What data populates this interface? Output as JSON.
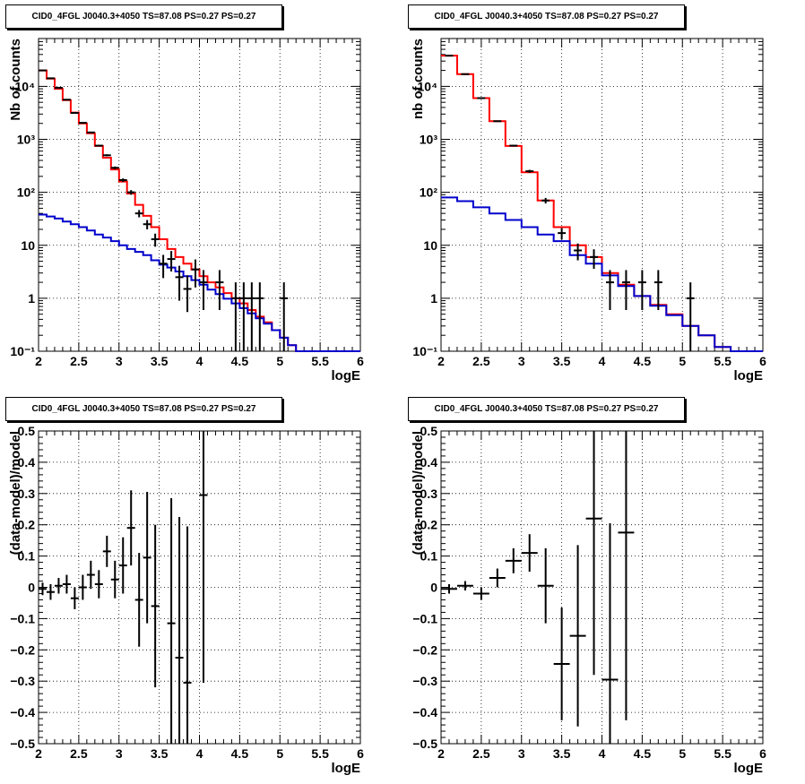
{
  "panels": [
    {
      "title": "CID0_4FGL J0040.3+4050 TS=87.08 PS=0.27 PS=0.27",
      "chart_data": {
        "type": "line",
        "xlabel": "logE",
        "ylabel": "Nb of counts",
        "xlim": [
          2,
          6
        ],
        "ylim": [
          0.1,
          80000
        ],
        "yscale": "log",
        "grid": true,
        "x_ticks": [
          "2",
          "2.5",
          "3",
          "3.5",
          "4",
          "4.5",
          "5",
          "5.5",
          "6"
        ],
        "y_ticks": [
          "10⁻¹",
          "1",
          "10",
          "10²",
          "10³",
          "10⁴"
        ],
        "series": [
          {
            "color": "#ff0000",
            "style": "step",
            "bin_width": 0.1,
            "x": [
              2.0,
              2.1,
              2.2,
              2.3,
              2.4,
              2.5,
              2.6,
              2.7,
              2.8,
              2.9,
              3.0,
              3.1,
              3.2,
              3.3,
              3.4,
              3.5,
              3.6,
              3.7,
              3.8,
              3.9,
              4.0,
              4.1,
              4.2,
              4.3,
              4.4,
              4.5,
              4.6,
              4.7,
              4.8,
              4.9,
              5.0,
              5.1,
              5.2,
              5.3,
              5.4,
              5.5,
              5.6,
              5.7,
              5.8,
              5.9
            ],
            "values": [
              20000,
              14000,
              9000,
              5500,
              3200,
              2000,
              1300,
              750,
              450,
              270,
              160,
              95,
              58,
              36,
              22,
              13,
              8.5,
              6.0,
              4.5,
              3.5,
              2.6,
              2.0,
              1.6,
              1.25,
              1.0,
              0.8,
              0.6,
              0.45,
              0.35,
              0.25,
              0.18,
              0.13,
              0.1,
              0.1,
              0.1,
              0.1,
              0.1,
              0.1,
              0.1,
              0.1
            ]
          },
          {
            "color": "#0000cc",
            "style": "step",
            "bin_width": 0.1,
            "x": [
              2.0,
              2.1,
              2.2,
              2.3,
              2.4,
              2.5,
              2.6,
              2.7,
              2.8,
              2.9,
              3.0,
              3.1,
              3.2,
              3.3,
              3.4,
              3.5,
              3.6,
              3.7,
              3.8,
              3.9,
              4.0,
              4.1,
              4.2,
              4.3,
              4.4,
              4.5,
              4.6,
              4.7,
              4.8,
              4.9,
              5.0,
              5.1,
              5.2,
              5.3,
              5.4,
              5.5,
              5.6,
              5.7,
              5.8,
              5.9
            ],
            "values": [
              38,
              35,
              32,
              28,
              25,
              22,
              19,
              16,
              14,
              12,
              10,
              8.5,
              7.5,
              6.5,
              5.2,
              4.3,
              3.8,
              3.2,
              2.6,
              2.2,
              1.8,
              1.45,
              1.2,
              0.98,
              0.8,
              0.65,
              0.52,
              0.42,
              0.33,
              0.25,
              0.18,
              0.13,
              0.1,
              0.1,
              0.1,
              0.1,
              0.1,
              0.1,
              0.1,
              0.1
            ]
          },
          {
            "color": "#000000",
            "style": "errorbar",
            "x": [
              2.05,
              2.15,
              2.25,
              2.35,
              2.45,
              2.55,
              2.65,
              2.75,
              2.85,
              2.95,
              3.05,
              3.15,
              3.25,
              3.35,
              3.45,
              3.55,
              3.65,
              3.75,
              3.85,
              3.95,
              4.05,
              4.25,
              4.45,
              4.55,
              4.65,
              4.75,
              5.05
            ],
            "values": [
              20000,
              14200,
              9400,
              5600,
              3150,
              2050,
              1350,
              760,
              500,
              290,
              170,
              100,
              40,
              25,
              13,
              4.5,
              5.5,
              2.5,
              1.5,
              3.5,
              2.0,
              2.0,
              1.0,
              1.0,
              1.0,
              1.0,
              1.0
            ],
            "err_low": [
              140,
              120,
              97,
              75,
              56,
              45,
              37,
              28,
              22,
              17,
              13,
              10,
              6.3,
              5,
              3.6,
              2.1,
              2.3,
              1.6,
              0.95,
              1.9,
              1.4,
              1.4,
              0.9,
              0.9,
              0.9,
              0.9,
              0.9
            ],
            "err_high": [
              140,
              120,
              97,
              75,
              56,
              45,
              37,
              28,
              22,
              17,
              13,
              10,
              6.3,
              5,
              3.6,
              2.1,
              2.3,
              1.6,
              1.2,
              1.9,
              1.4,
              1.4,
              1.0,
              1.0,
              1.0,
              1.0,
              1.0
            ]
          }
        ]
      }
    },
    {
      "title": "CID0_4FGL J0040.3+4050 TS=87.08 PS=0.27 PS=0.27",
      "chart_data": {
        "type": "line",
        "xlabel": "logE",
        "ylabel": "nb of counts",
        "xlim": [
          2,
          6
        ],
        "ylim": [
          0.1,
          80000
        ],
        "yscale": "log",
        "grid": true,
        "x_ticks": [
          "2",
          "2.5",
          "3",
          "3.5",
          "4",
          "4.5",
          "5",
          "5.5",
          "6"
        ],
        "y_ticks": [
          "10⁻¹",
          "1",
          "10",
          "10²",
          "10³",
          "10⁴"
        ],
        "series": [
          {
            "color": "#ff0000",
            "style": "step",
            "bin_width": 0.2,
            "x": [
              2.0,
              2.2,
              2.4,
              2.6,
              2.8,
              3.0,
              3.2,
              3.4,
              3.6,
              3.8,
              4.0,
              4.2,
              4.4,
              4.6,
              4.8,
              5.0,
              5.2,
              5.4,
              5.6,
              5.8
            ],
            "values": [
              38000,
              17000,
              6000,
              2200,
              750,
              240,
              70,
              22,
              10,
              6,
              3.0,
              1.8,
              1.1,
              0.75,
              0.5,
              0.3,
              0.2,
              0.12,
              0.1,
              0.1
            ]
          },
          {
            "color": "#0000cc",
            "style": "step",
            "bin_width": 0.2,
            "x": [
              2.0,
              2.2,
              2.4,
              2.6,
              2.8,
              3.0,
              3.2,
              3.4,
              3.6,
              3.8,
              4.0,
              4.2,
              4.4,
              4.6,
              4.8,
              5.0,
              5.2,
              5.4,
              5.6,
              5.8
            ],
            "values": [
              80,
              68,
              52,
              40,
              30,
              22,
              16,
              12,
              6.5,
              4.5,
              2.7,
              1.7,
              1.1,
              0.72,
              0.48,
              0.3,
              0.2,
              0.12,
              0.1,
              0.1
            ]
          },
          {
            "color": "#000000",
            "style": "errorbar",
            "x": [
              2.1,
              2.3,
              2.5,
              2.7,
              2.9,
              3.1,
              3.3,
              3.5,
              3.7,
              3.9,
              4.1,
              4.3,
              4.5,
              4.7,
              5.1
            ],
            "values": [
              38000,
              17000,
              6000,
              2200,
              760,
              250,
              70,
              17,
              8,
              6,
              2,
              2,
              2,
              2,
              1
            ],
            "err_low": [
              195,
              130,
              77,
              47,
              28,
              16,
              8.4,
              4.1,
              2.8,
              2.4,
              1.4,
              1.4,
              1.4,
              1.4,
              0.9
            ],
            "err_high": [
              195,
              130,
              77,
              47,
              28,
              16,
              8.4,
              4.1,
              2.8,
              2.4,
              1.4,
              1.4,
              1.4,
              1.4,
              1.0
            ]
          }
        ]
      }
    },
    {
      "title": "CID0_4FGL J0040.3+4050 TS=87.08 PS=0.27 PS=0.27",
      "chart_data": {
        "type": "scatter",
        "xlabel": "logE",
        "ylabel": "(data-model)/model",
        "xlim": [
          2,
          6
        ],
        "ylim": [
          -0.5,
          0.5
        ],
        "yscale": "linear",
        "grid": true,
        "x_ticks": [
          "2",
          "2.5",
          "3",
          "3.5",
          "4",
          "4.5",
          "5",
          "5.5",
          "6"
        ],
        "y_ticks": [
          "−0.5",
          "−0.4",
          "−0.3",
          "−0.2",
          "−0.1",
          "0",
          "0.1",
          "0.2",
          "0.3",
          "0.4",
          "0.5"
        ],
        "series": [
          {
            "color": "#000000",
            "style": "errorbar",
            "x_halfwidth": 0.05,
            "x": [
              2.05,
              2.15,
              2.25,
              2.35,
              2.45,
              2.55,
              2.65,
              2.75,
              2.85,
              2.95,
              3.05,
              3.15,
              3.25,
              3.35,
              3.45,
              3.65,
              3.75,
              3.85,
              4.05
            ],
            "values": [
              -0.005,
              -0.015,
              0.005,
              0.01,
              -0.035,
              0.0,
              0.04,
              0.01,
              0.115,
              0.025,
              0.07,
              0.19,
              -0.04,
              0.095,
              -0.06,
              -0.115,
              -0.225,
              -0.305,
              0.295
            ],
            "errors": [
              0.02,
              0.025,
              0.025,
              0.03,
              0.035,
              0.04,
              0.045,
              0.045,
              0.05,
              0.06,
              0.09,
              0.12,
              0.15,
              0.21,
              0.26,
              0.4,
              0.45,
              0.5,
              0.6
            ]
          }
        ]
      }
    },
    {
      "title": "CID0_4FGL J0040.3+4050 TS=87.08 PS=0.27 PS=0.27",
      "chart_data": {
        "type": "scatter",
        "xlabel": "logE",
        "ylabel": "(data-model)/model",
        "xlim": [
          2,
          6
        ],
        "ylim": [
          -0.5,
          0.5
        ],
        "yscale": "linear",
        "grid": true,
        "x_ticks": [
          "2",
          "2.5",
          "3",
          "3.5",
          "4",
          "4.5",
          "5",
          "5.5",
          "6"
        ],
        "y_ticks": [
          "−0.5",
          "−0.4",
          "−0.3",
          "−0.2",
          "−0.1",
          "0",
          "0.1",
          "0.2",
          "0.3",
          "0.4",
          "0.5"
        ],
        "series": [
          {
            "color": "#000000",
            "style": "errorbar",
            "x_halfwidth": 0.1,
            "x": [
              2.1,
              2.3,
              2.5,
              2.7,
              2.9,
              3.1,
              3.3,
              3.5,
              3.7,
              3.9,
              4.1,
              4.3
            ],
            "values": [
              -0.005,
              0.005,
              -0.02,
              0.03,
              0.085,
              0.11,
              0.005,
              -0.245,
              -0.155,
              0.22,
              -0.295,
              0.175
            ],
            "errors": [
              0.015,
              0.015,
              0.02,
              0.03,
              0.04,
              0.06,
              0.12,
              0.18,
              0.29,
              0.5,
              0.5,
              0.6
            ]
          }
        ]
      }
    }
  ]
}
